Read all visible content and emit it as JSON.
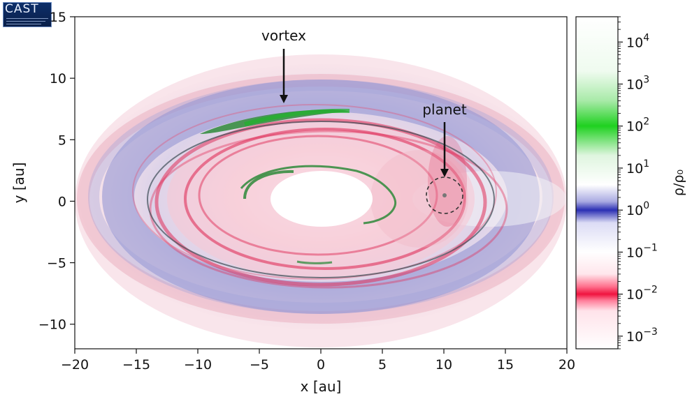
{
  "logo": {
    "text": "CAST"
  },
  "chart_data": {
    "type": "heatmap",
    "title": "",
    "xlabel": "x [au]",
    "ylabel": "y [au]",
    "xlim": [
      -20,
      20
    ],
    "ylim": [
      -12,
      15
    ],
    "x_ticks": [
      -20,
      -15,
      -10,
      -5,
      0,
      5,
      10,
      15,
      20
    ],
    "x_tick_labels": [
      "−20",
      "−15",
      "−10",
      "−5",
      "0",
      "5",
      "10",
      "15",
      "20"
    ],
    "y_ticks": [
      -10,
      -5,
      0,
      5,
      10,
      15
    ],
    "y_tick_labels": [
      "−10",
      "−5",
      "0",
      "5",
      "10",
      "15"
    ],
    "grid": false,
    "description_quantity": "rho/rho0 surface density of a disk with an inner cavity, vortex and embedded planet",
    "annotations": [
      {
        "text": "vortex",
        "arrow_to": [
          -3,
          8
        ]
      },
      {
        "text": "planet",
        "arrow_to": [
          10,
          2
        ]
      }
    ],
    "planet_marker": {
      "x": 10,
      "y": 0.5,
      "radius": 1.5
    },
    "colorbar": {
      "label": "ρ/ρ₀",
      "scale": "log",
      "range": [
        0.0005,
        40000
      ],
      "ticks": [
        0.001,
        0.01,
        0.1,
        1,
        10,
        100,
        1000,
        10000
      ],
      "tick_labels": [
        {
          "base": "10",
          "exp": "−3"
        },
        {
          "base": "10",
          "exp": "−2"
        },
        {
          "base": "10",
          "exp": "−1"
        },
        {
          "base": "10",
          "exp": "0"
        },
        {
          "base": "10",
          "exp": "1"
        },
        {
          "base": "10",
          "exp": "2"
        },
        {
          "base": "10",
          "exp": "3"
        },
        {
          "base": "10",
          "exp": "4"
        }
      ],
      "color_stops": [
        {
          "value": 0.0005,
          "color": "#ffffff"
        },
        {
          "value": 0.004,
          "color": "#ffe3ea"
        },
        {
          "value": 0.007,
          "color": "#ff7f9b"
        },
        {
          "value": 0.01,
          "color": "#f0143f"
        },
        {
          "value": 0.015,
          "color": "#ff6f8c"
        },
        {
          "value": 0.03,
          "color": "#ffe6ec"
        },
        {
          "value": 0.1,
          "color": "#ffffff"
        },
        {
          "value": 0.5,
          "color": "#dcdcf5"
        },
        {
          "value": 1,
          "color": "#2b2fb3"
        },
        {
          "value": 1.6,
          "color": "#a9aae2"
        },
        {
          "value": 4,
          "color": "#ffffff"
        },
        {
          "value": 20,
          "color": "#dff5df"
        },
        {
          "value": 100,
          "color": "#1fd120"
        },
        {
          "value": 400,
          "color": "#a8eaa8"
        },
        {
          "value": 2000,
          "color": "#effbef"
        },
        {
          "value": 40000,
          "color": "#ffffff"
        }
      ]
    },
    "colors": {
      "inner_ring_red": "#e0305a",
      "blue_band": "#7f82c9",
      "vortex_green": "#2e8a3a",
      "outer_faint_pink": "#f7d6df"
    }
  }
}
